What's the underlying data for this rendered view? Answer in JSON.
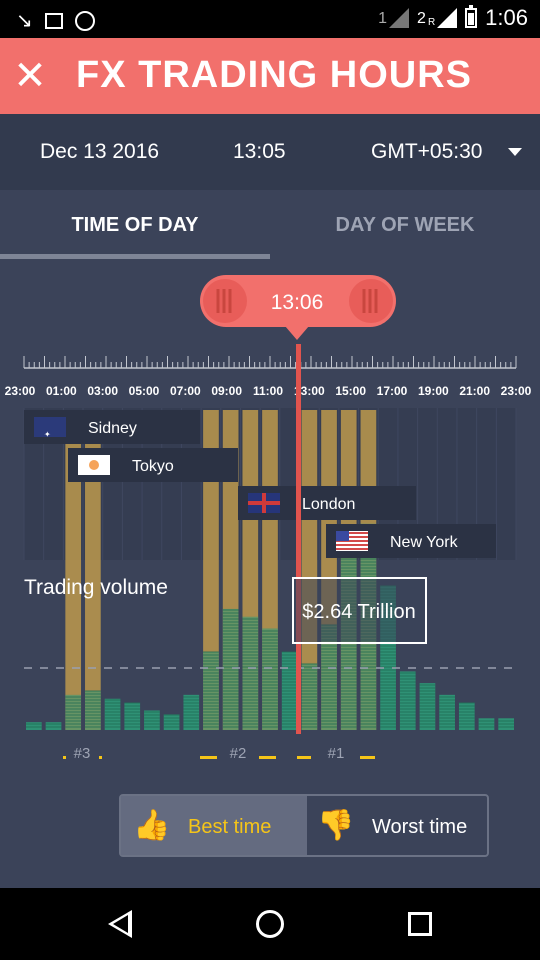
{
  "status": {
    "sim1_label": "1",
    "sim2_label": "2",
    "sim2_roaming": "R",
    "clock": "1:06"
  },
  "header": {
    "title": "FX TRADING HOURS",
    "close_label": "✕"
  },
  "info": {
    "date": "Dec 13 2016",
    "time": "13:05",
    "timezone": "GMT+05:30"
  },
  "tabs": [
    {
      "label": "TIME OF DAY",
      "active": true
    },
    {
      "label": "DAY OF WEEK",
      "active": false
    }
  ],
  "timeline": {
    "current_time": "13:06",
    "hour_labels": [
      "23:00",
      "01:00",
      "03:00",
      "05:00",
      "07:00",
      "09:00",
      "11:00",
      "13:00",
      "15:00",
      "17:00",
      "19:00",
      "21:00",
      "23:00"
    ]
  },
  "sessions": [
    {
      "name": "Sidney",
      "flag": "australia-flag"
    },
    {
      "name": "Tokyo",
      "flag": "japan-flag"
    },
    {
      "name": "London",
      "flag": "uk-flag"
    },
    {
      "name": "New York",
      "flag": "usa-flag"
    }
  ],
  "volume": {
    "label": "Trading volume",
    "value": "$2.64 Trillion",
    "rank_labels": [
      "#3",
      "#2",
      "#1"
    ]
  },
  "chart_data": {
    "type": "bar",
    "title": "Trading volume",
    "x": [
      "23:00",
      "00:00",
      "01:00",
      "02:00",
      "03:00",
      "04:00",
      "05:00",
      "06:00",
      "07:00",
      "08:00",
      "09:00",
      "10:00",
      "11:00",
      "12:00",
      "13:00",
      "14:00",
      "15:00",
      "16:00",
      "17:00",
      "18:00",
      "19:00",
      "20:00",
      "21:00",
      "22:00",
      "23:00"
    ],
    "values": [
      0.1,
      0.1,
      0.45,
      0.5,
      0.4,
      0.35,
      0.25,
      0.2,
      0.45,
      1.0,
      1.55,
      1.45,
      1.3,
      1.0,
      0.85,
      1.35,
      2.2,
      2.64,
      1.85,
      0.75,
      0.6,
      0.45,
      0.35,
      0.15,
      0.15
    ],
    "highlighted": [
      false,
      false,
      true,
      true,
      false,
      false,
      false,
      false,
      false,
      true,
      true,
      true,
      true,
      false,
      true,
      true,
      true,
      true,
      false,
      false,
      false,
      false,
      false,
      false,
      false
    ],
    "colors": {
      "bar": "#2f9a78",
      "highlight": "#c9a24c",
      "cursor": "#e1544e"
    }
  },
  "filters": {
    "best_label": "Best time",
    "worst_label": "Worst time",
    "active": "best"
  },
  "colors": {
    "accent": "#f2706c",
    "header_bg": "#323a4e",
    "page_bg": "#3b4359"
  }
}
